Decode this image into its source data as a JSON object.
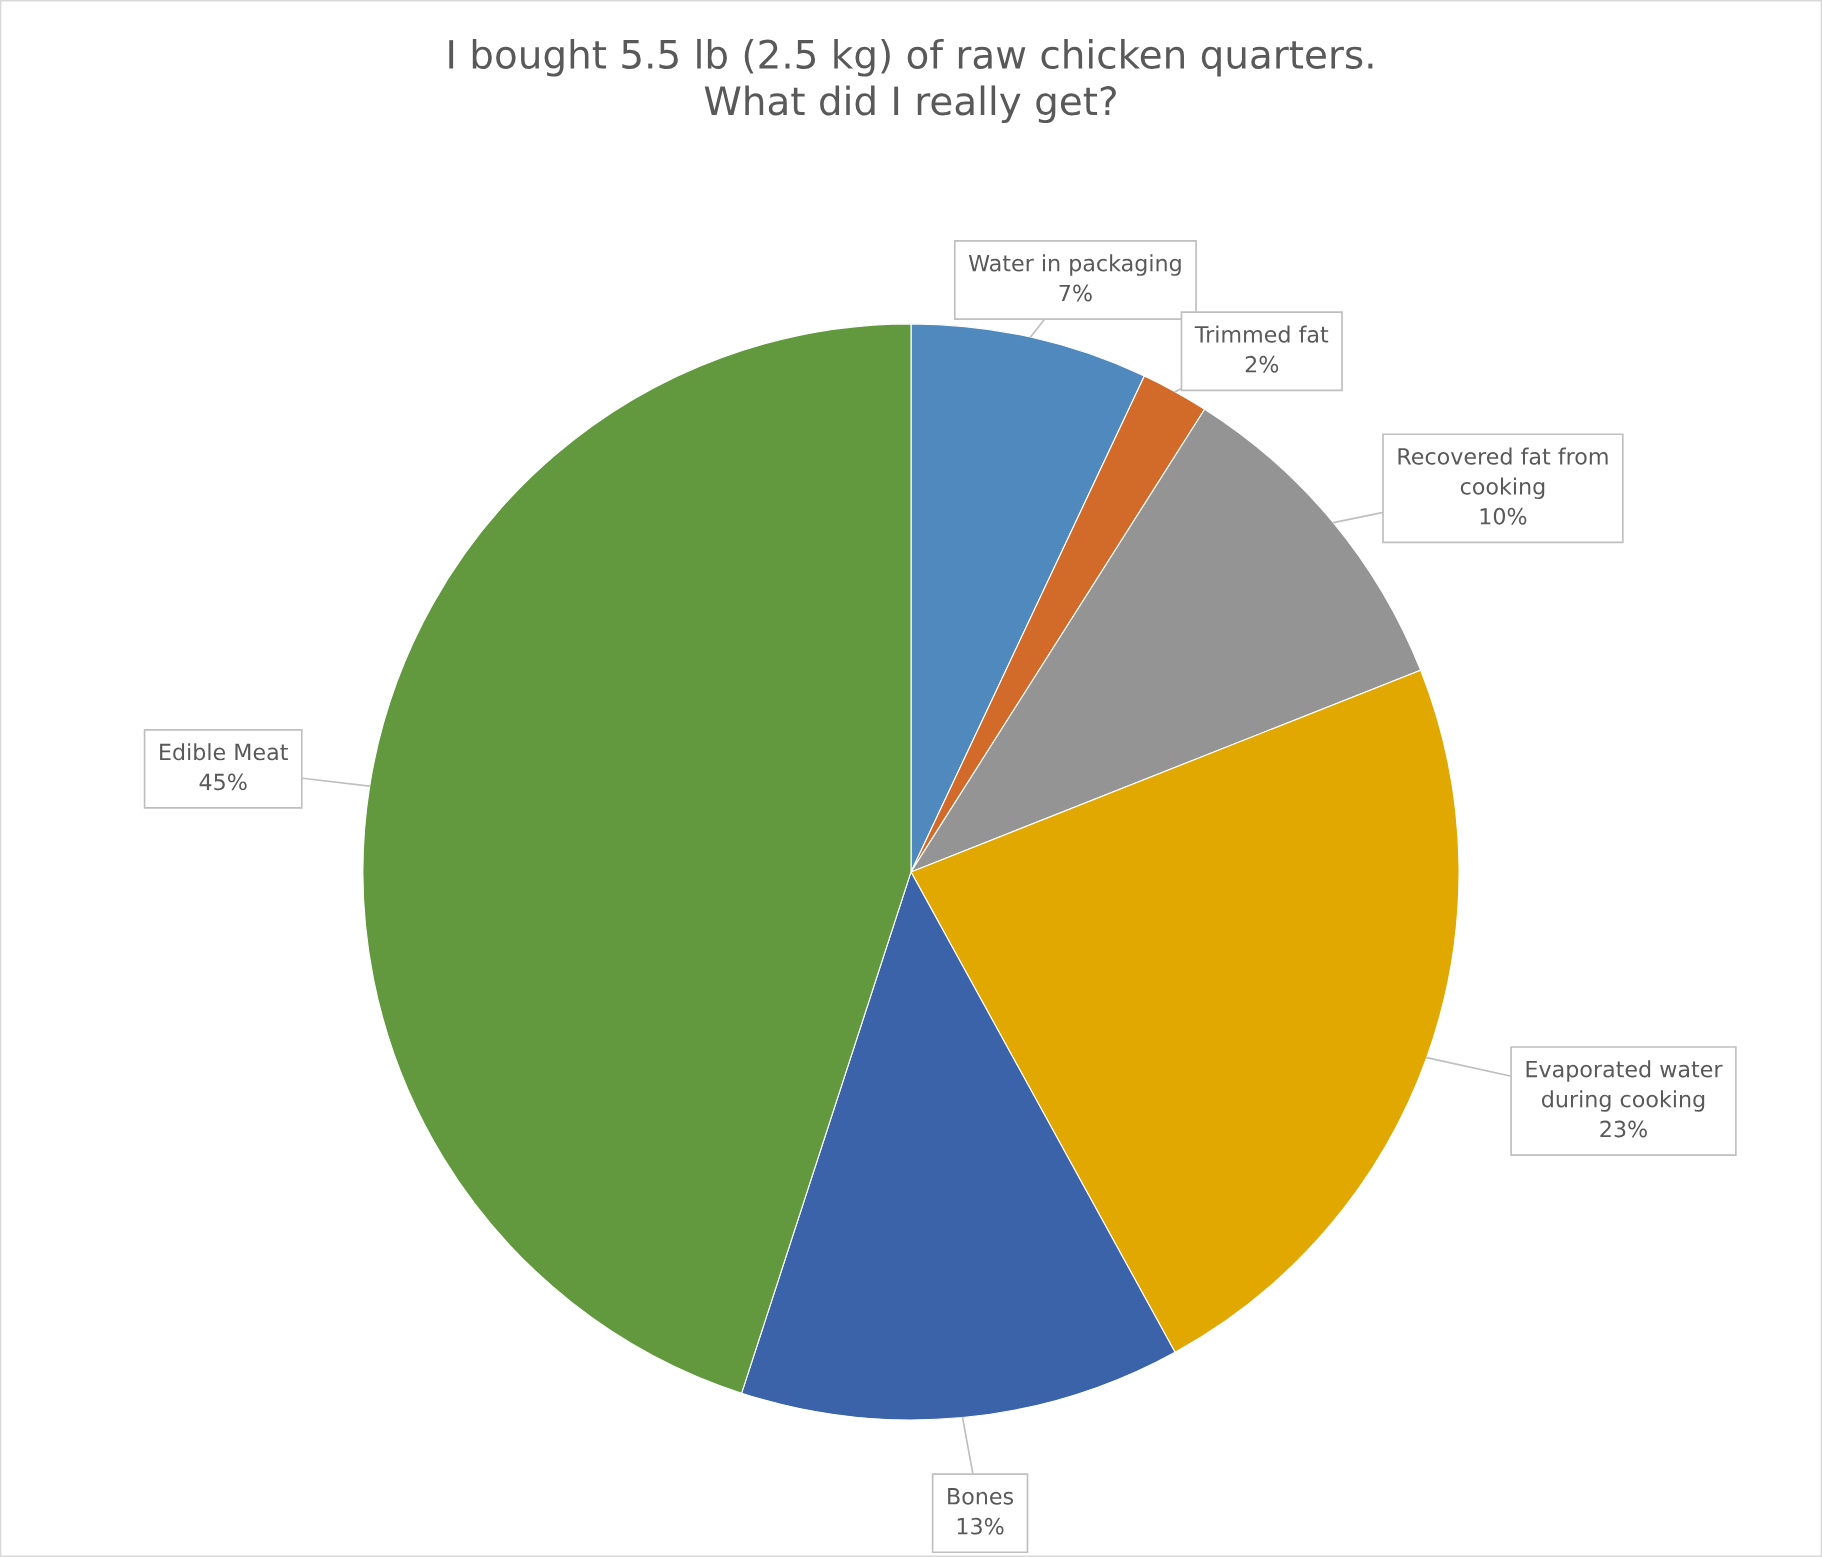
{
  "chart_data": {
    "type": "pie",
    "title": "I bought 5.5 lb (2.5 kg) of raw chicken quarters.\nWhat did I really get?",
    "categories": [
      "Water in packaging",
      "Trimmed fat",
      "Recovered fat from\ncooking",
      "Evaporated water\nduring cooking",
      "Bones",
      "Edible Meat"
    ],
    "values": [
      7,
      2,
      10,
      23,
      13,
      45
    ],
    "value_labels": [
      "7%",
      "2%",
      "10%",
      "23%",
      "13%",
      "45%"
    ],
    "colors": [
      "#4f89be",
      "#d26b29",
      "#949494",
      "#e0a800",
      "#3b63aa",
      "#62993f"
    ],
    "legend": false
  }
}
